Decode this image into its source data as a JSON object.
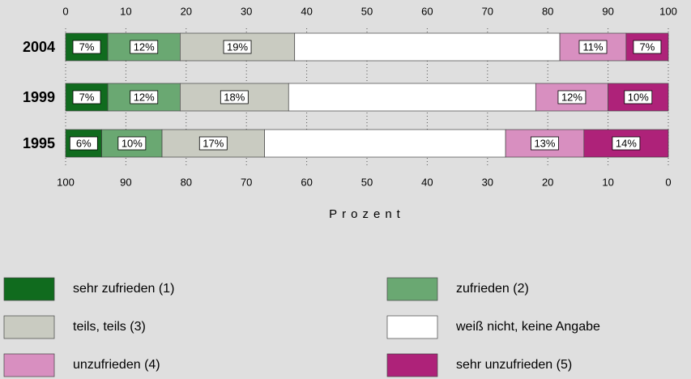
{
  "chart_data": {
    "type": "stacked-barh",
    "categories": [
      "2004",
      "1999",
      "1995"
    ],
    "series": [
      {
        "name": "sehr zufrieden (1)",
        "color": "#106b1e",
        "values": [
          7,
          7,
          6
        ],
        "value_labels": [
          "7%",
          "7%",
          "6%"
        ]
      },
      {
        "name": "zufrieden (2)",
        "color": "#6aa872",
        "values": [
          12,
          12,
          10
        ],
        "value_labels": [
          "12%",
          "12%",
          "10%"
        ]
      },
      {
        "name": "teils, teils (3)",
        "color": "#c9cbc1",
        "values": [
          19,
          18,
          17
        ],
        "value_labels": [
          "19%",
          "18%",
          "17%"
        ]
      },
      {
        "name": "weiß nicht, keine Angabe",
        "color": "#ffffff",
        "values": [
          44,
          41,
          40
        ],
        "value_labels": [
          null,
          null,
          null
        ]
      },
      {
        "name": "unzufrieden (4)",
        "color": "#d88fc0",
        "values": [
          11,
          12,
          13
        ],
        "value_labels": [
          "11%",
          "12%",
          "13%"
        ]
      },
      {
        "name": "sehr unzufrieden (5)",
        "color": "#ae2279",
        "values": [
          7,
          10,
          14
        ],
        "value_labels": [
          "7%",
          "10%",
          "14%"
        ]
      }
    ],
    "xlim": [
      0,
      100
    ],
    "xticks": [
      0,
      10,
      20,
      30,
      40,
      50,
      60,
      70,
      80,
      90,
      100
    ],
    "x2lim": [
      100,
      0
    ],
    "x2ticks": [
      100,
      90,
      80,
      70,
      60,
      50,
      40,
      30,
      20,
      10,
      0
    ],
    "xlabel": "Prozent",
    "grid": true
  }
}
